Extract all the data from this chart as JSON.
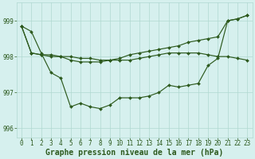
{
  "background_color": "#d6f0ee",
  "grid_color": "#b0d8d0",
  "line_color": "#2d5a1e",
  "xlabel": "Graphe pression niveau de la mer (hPa)",
  "xlabel_fontsize": 7,
  "tick_fontsize": 5.5,
  "ylim": [
    995.75,
    999.5
  ],
  "xlim": [
    -0.5,
    23.5
  ],
  "yticks": [
    996,
    997,
    998,
    999
  ],
  "xticks": [
    0,
    1,
    2,
    3,
    4,
    5,
    6,
    7,
    8,
    9,
    10,
    11,
    12,
    13,
    14,
    15,
    16,
    17,
    18,
    19,
    20,
    21,
    22,
    23
  ],
  "line1_y": [
    998.85,
    998.7,
    998.1,
    997.55,
    997.4,
    996.6,
    996.7,
    996.6,
    996.55,
    996.65,
    996.85,
    996.85,
    996.85,
    996.9,
    997.0,
    997.2,
    997.15,
    997.2,
    997.25,
    997.75,
    997.95,
    999.0,
    999.05,
    999.15
  ],
  "line2_y": [
    998.85,
    998.1,
    998.05,
    998.0,
    998.0,
    998.0,
    997.95,
    997.95,
    997.9,
    997.9,
    997.9,
    997.9,
    997.95,
    998.0,
    998.05,
    998.1,
    998.1,
    998.1,
    998.1,
    998.05,
    998.0,
    998.0,
    997.95,
    997.9
  ],
  "line3_y": [
    998.85,
    998.1,
    998.05,
    998.05,
    998.0,
    997.9,
    997.85,
    997.85,
    997.85,
    997.9,
    997.95,
    998.05,
    998.1,
    998.15,
    998.2,
    998.25,
    998.3,
    998.4,
    998.45,
    998.5,
    998.55,
    999.0,
    999.05,
    999.15
  ]
}
